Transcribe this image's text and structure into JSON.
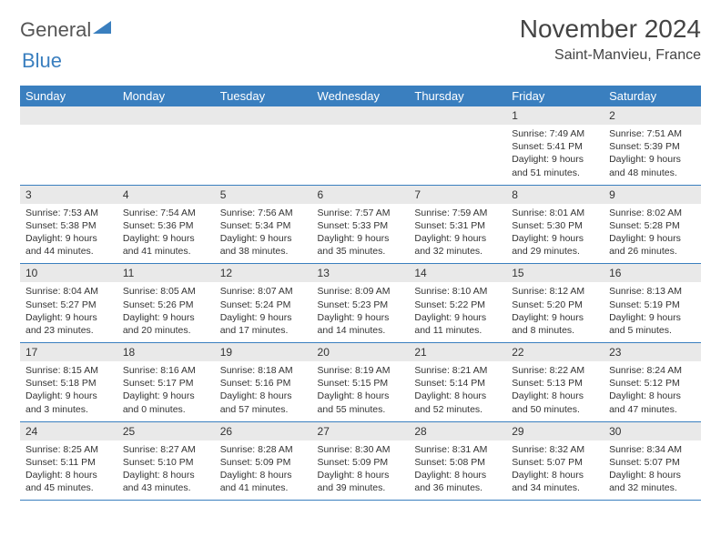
{
  "logo": {
    "textA": "General",
    "textB": "Blue"
  },
  "title": "November 2024",
  "location": "Saint-Manvieu, France",
  "colors": {
    "header_bg": "#3a7fbf",
    "header_text": "#ffffff",
    "daynum_bg": "#e9e9e9",
    "border": "#3a7fbf",
    "body_text": "#333333"
  },
  "dayHeaders": [
    "Sunday",
    "Monday",
    "Tuesday",
    "Wednesday",
    "Thursday",
    "Friday",
    "Saturday"
  ],
  "weeks": [
    [
      null,
      null,
      null,
      null,
      null,
      {
        "n": "1",
        "sunrise": "7:49 AM",
        "sunset": "5:41 PM",
        "daylight": "9 hours and 51 minutes."
      },
      {
        "n": "2",
        "sunrise": "7:51 AM",
        "sunset": "5:39 PM",
        "daylight": "9 hours and 48 minutes."
      }
    ],
    [
      {
        "n": "3",
        "sunrise": "7:53 AM",
        "sunset": "5:38 PM",
        "daylight": "9 hours and 44 minutes."
      },
      {
        "n": "4",
        "sunrise": "7:54 AM",
        "sunset": "5:36 PM",
        "daylight": "9 hours and 41 minutes."
      },
      {
        "n": "5",
        "sunrise": "7:56 AM",
        "sunset": "5:34 PM",
        "daylight": "9 hours and 38 minutes."
      },
      {
        "n": "6",
        "sunrise": "7:57 AM",
        "sunset": "5:33 PM",
        "daylight": "9 hours and 35 minutes."
      },
      {
        "n": "7",
        "sunrise": "7:59 AM",
        "sunset": "5:31 PM",
        "daylight": "9 hours and 32 minutes."
      },
      {
        "n": "8",
        "sunrise": "8:01 AM",
        "sunset": "5:30 PM",
        "daylight": "9 hours and 29 minutes."
      },
      {
        "n": "9",
        "sunrise": "8:02 AM",
        "sunset": "5:28 PM",
        "daylight": "9 hours and 26 minutes."
      }
    ],
    [
      {
        "n": "10",
        "sunrise": "8:04 AM",
        "sunset": "5:27 PM",
        "daylight": "9 hours and 23 minutes."
      },
      {
        "n": "11",
        "sunrise": "8:05 AM",
        "sunset": "5:26 PM",
        "daylight": "9 hours and 20 minutes."
      },
      {
        "n": "12",
        "sunrise": "8:07 AM",
        "sunset": "5:24 PM",
        "daylight": "9 hours and 17 minutes."
      },
      {
        "n": "13",
        "sunrise": "8:09 AM",
        "sunset": "5:23 PM",
        "daylight": "9 hours and 14 minutes."
      },
      {
        "n": "14",
        "sunrise": "8:10 AM",
        "sunset": "5:22 PM",
        "daylight": "9 hours and 11 minutes."
      },
      {
        "n": "15",
        "sunrise": "8:12 AM",
        "sunset": "5:20 PM",
        "daylight": "9 hours and 8 minutes."
      },
      {
        "n": "16",
        "sunrise": "8:13 AM",
        "sunset": "5:19 PM",
        "daylight": "9 hours and 5 minutes."
      }
    ],
    [
      {
        "n": "17",
        "sunrise": "8:15 AM",
        "sunset": "5:18 PM",
        "daylight": "9 hours and 3 minutes."
      },
      {
        "n": "18",
        "sunrise": "8:16 AM",
        "sunset": "5:17 PM",
        "daylight": "9 hours and 0 minutes."
      },
      {
        "n": "19",
        "sunrise": "8:18 AM",
        "sunset": "5:16 PM",
        "daylight": "8 hours and 57 minutes."
      },
      {
        "n": "20",
        "sunrise": "8:19 AM",
        "sunset": "5:15 PM",
        "daylight": "8 hours and 55 minutes."
      },
      {
        "n": "21",
        "sunrise": "8:21 AM",
        "sunset": "5:14 PM",
        "daylight": "8 hours and 52 minutes."
      },
      {
        "n": "22",
        "sunrise": "8:22 AM",
        "sunset": "5:13 PM",
        "daylight": "8 hours and 50 minutes."
      },
      {
        "n": "23",
        "sunrise": "8:24 AM",
        "sunset": "5:12 PM",
        "daylight": "8 hours and 47 minutes."
      }
    ],
    [
      {
        "n": "24",
        "sunrise": "8:25 AM",
        "sunset": "5:11 PM",
        "daylight": "8 hours and 45 minutes."
      },
      {
        "n": "25",
        "sunrise": "8:27 AM",
        "sunset": "5:10 PM",
        "daylight": "8 hours and 43 minutes."
      },
      {
        "n": "26",
        "sunrise": "8:28 AM",
        "sunset": "5:09 PM",
        "daylight": "8 hours and 41 minutes."
      },
      {
        "n": "27",
        "sunrise": "8:30 AM",
        "sunset": "5:09 PM",
        "daylight": "8 hours and 39 minutes."
      },
      {
        "n": "28",
        "sunrise": "8:31 AM",
        "sunset": "5:08 PM",
        "daylight": "8 hours and 36 minutes."
      },
      {
        "n": "29",
        "sunrise": "8:32 AM",
        "sunset": "5:07 PM",
        "daylight": "8 hours and 34 minutes."
      },
      {
        "n": "30",
        "sunrise": "8:34 AM",
        "sunset": "5:07 PM",
        "daylight": "8 hours and 32 minutes."
      }
    ]
  ],
  "labels": {
    "sunrise": "Sunrise: ",
    "sunset": "Sunset: ",
    "daylight": "Daylight: "
  }
}
